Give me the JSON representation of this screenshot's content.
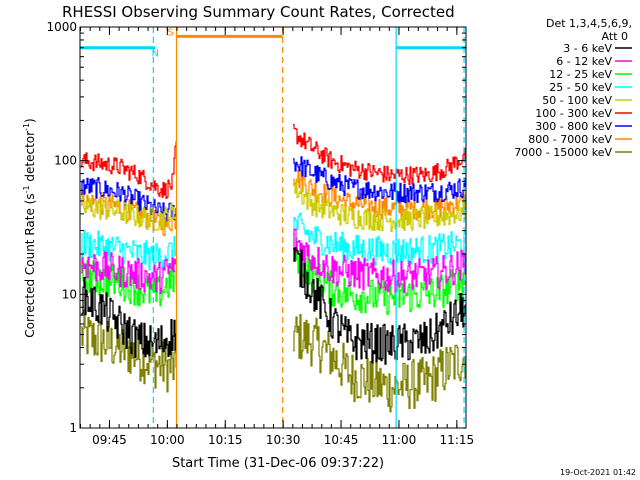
{
  "chart_data": {
    "type": "line",
    "title": "RHESSI Observing Summary Count Rates, Corrected",
    "xlabel": "Start Time (31-Dec-06 09:37:22)",
    "ylabel_parts": {
      "pre": "Corrected Count Rate (s",
      "mid": " detector",
      "post": ")",
      "sup": "-1"
    },
    "x_unit": "minutes since 09:37:22",
    "xlim": [
      0,
      100
    ],
    "ylim": [
      1,
      1000
    ],
    "yscale": "log",
    "x_ticks": [
      {
        "label": "09:45",
        "value": 7.63
      },
      {
        "label": "10:00",
        "value": 22.63
      },
      {
        "label": "10:15",
        "value": 37.63
      },
      {
        "label": "10:30",
        "value": 52.63
      },
      {
        "label": "10:45",
        "value": 67.63
      },
      {
        "label": "11:00",
        "value": 82.63
      },
      {
        "label": "11:15",
        "value": 97.63
      }
    ],
    "y_ticks": [
      {
        "label": "1",
        "value": 1
      },
      {
        "label": "10",
        "value": 10
      },
      {
        "label": "100",
        "value": 100
      },
      {
        "label": "1000",
        "value": 1000
      }
    ],
    "legend": {
      "placement": "right",
      "header": [
        "Det 1,3,4,5,6,9,",
        "Att 0"
      ]
    },
    "gaps": [
      [
        25.0,
        55.0
      ]
    ],
    "series": [
      {
        "name": "3 - 6 keV",
        "color": "#000000",
        "points": [
          [
            0,
            10
          ],
          [
            5,
            8
          ],
          [
            10,
            6
          ],
          [
            15,
            4.5
          ],
          [
            20,
            4.2
          ],
          [
            24,
            5
          ],
          [
            55,
            20
          ],
          [
            60,
            11
          ],
          [
            65,
            6.5
          ],
          [
            70,
            4.5
          ],
          [
            80,
            4.2
          ],
          [
            90,
            4.5
          ],
          [
            95,
            6
          ],
          [
            100,
            8
          ]
        ]
      },
      {
        "name": "6 - 12 keV",
        "color": "#ff00ff",
        "points": [
          [
            0,
            17
          ],
          [
            5,
            16
          ],
          [
            10,
            15
          ],
          [
            15,
            14
          ],
          [
            20,
            13
          ],
          [
            24,
            16
          ],
          [
            55,
            26
          ],
          [
            60,
            19
          ],
          [
            65,
            15.5
          ],
          [
            70,
            14.5
          ],
          [
            80,
            13.5
          ],
          [
            90,
            14
          ],
          [
            95,
            15
          ],
          [
            100,
            17
          ]
        ]
      },
      {
        "name": "12 - 25 keV",
        "color": "#00ff00",
        "points": [
          [
            0,
            14
          ],
          [
            5,
            13
          ],
          [
            10,
            12.5
          ],
          [
            15,
            11
          ],
          [
            20,
            10
          ],
          [
            24,
            13
          ],
          [
            55,
            22
          ],
          [
            60,
            14
          ],
          [
            65,
            11
          ],
          [
            70,
            10
          ],
          [
            80,
            9.5
          ],
          [
            90,
            10
          ],
          [
            95,
            11
          ],
          [
            100,
            13
          ]
        ]
      },
      {
        "name": "25 - 50 keV",
        "color": "#00ffff",
        "points": [
          [
            0,
            24
          ],
          [
            5,
            23
          ],
          [
            10,
            22
          ],
          [
            15,
            20
          ],
          [
            20,
            19
          ],
          [
            24,
            21
          ],
          [
            55,
            35
          ],
          [
            60,
            27
          ],
          [
            65,
            24
          ],
          [
            70,
            22
          ],
          [
            80,
            21
          ],
          [
            90,
            21.5
          ],
          [
            95,
            22.5
          ],
          [
            100,
            24
          ]
        ]
      },
      {
        "name": "50 - 100 keV",
        "color": "#cccc00",
        "points": [
          [
            0,
            45
          ],
          [
            5,
            44
          ],
          [
            10,
            42
          ],
          [
            15,
            38
          ],
          [
            20,
            36
          ],
          [
            24,
            40
          ],
          [
            55,
            65
          ],
          [
            60,
            48
          ],
          [
            65,
            42
          ],
          [
            70,
            38
          ],
          [
            80,
            36
          ],
          [
            90,
            37
          ],
          [
            95,
            39
          ],
          [
            100,
            42
          ]
        ]
      },
      {
        "name": "100 - 300 keV",
        "color": "#ff0000",
        "points": [
          [
            0,
            100
          ],
          [
            5,
            96
          ],
          [
            10,
            90
          ],
          [
            15,
            78
          ],
          [
            20,
            63
          ],
          [
            22,
            60
          ],
          [
            24,
            68
          ],
          [
            25,
            150
          ],
          [
            55,
            165
          ],
          [
            60,
            125
          ],
          [
            65,
            100
          ],
          [
            70,
            88
          ],
          [
            80,
            78
          ],
          [
            90,
            78
          ],
          [
            95,
            88
          ],
          [
            100,
            110
          ]
        ]
      },
      {
        "name": "300 - 800 keV",
        "color": "#0000ff",
        "points": [
          [
            0,
            65
          ],
          [
            5,
            62
          ],
          [
            10,
            58
          ],
          [
            15,
            50
          ],
          [
            20,
            42
          ],
          [
            22,
            40
          ],
          [
            24,
            42
          ],
          [
            55,
            100
          ],
          [
            60,
            82
          ],
          [
            65,
            70
          ],
          [
            70,
            63
          ],
          [
            80,
            58
          ],
          [
            90,
            58
          ],
          [
            95,
            60
          ],
          [
            100,
            64
          ]
        ]
      },
      {
        "name": "800 - 7000 keV",
        "color": "#ff8800",
        "points": [
          [
            0,
            50
          ],
          [
            5,
            48
          ],
          [
            10,
            45
          ],
          [
            15,
            40
          ],
          [
            20,
            35
          ],
          [
            22,
            33
          ],
          [
            24,
            36
          ],
          [
            55,
            80
          ],
          [
            60,
            62
          ],
          [
            65,
            54
          ],
          [
            70,
            48
          ],
          [
            80,
            44
          ],
          [
            90,
            44
          ],
          [
            95,
            46
          ],
          [
            100,
            50
          ]
        ]
      },
      {
        "name": "7000 - 15000 keV",
        "color": "#808000",
        "points": [
          [
            0,
            5
          ],
          [
            5,
            4.5
          ],
          [
            10,
            4
          ],
          [
            15,
            3.5
          ],
          [
            20,
            3
          ],
          [
            24,
            2.8
          ],
          [
            55,
            5
          ],
          [
            60,
            4.5
          ],
          [
            65,
            3.5
          ],
          [
            70,
            2.5
          ],
          [
            80,
            2
          ],
          [
            90,
            2.2
          ],
          [
            95,
            2.8
          ],
          [
            100,
            3.5
          ]
        ]
      }
    ],
    "flags": [
      {
        "name": "N",
        "color": "#00d8ff",
        "level": 700,
        "segments": [
          [
            0,
            19.5
          ],
          [
            82,
            100
          ]
        ],
        "label_at": 19.5
      },
      {
        "name": "S",
        "color": "#ff8800",
        "level": 850,
        "segments": [
          [
            25,
            52.5
          ]
        ],
        "label_at": 23.5
      }
    ],
    "event_lines": [
      {
        "x": 19.0,
        "color": "#00d8ff",
        "dashed": true
      },
      {
        "x": 25.0,
        "color": "#ff8800",
        "dashed": false
      },
      {
        "x": 52.5,
        "color": "#ff8800",
        "dashed": true
      },
      {
        "x": 81.9,
        "color": "#00d8ff",
        "dashed": false
      },
      {
        "x": 99.5,
        "color": "#00d8ff",
        "dashed": true
      }
    ]
  },
  "timestamp": "19-Oct-2021 01:42"
}
